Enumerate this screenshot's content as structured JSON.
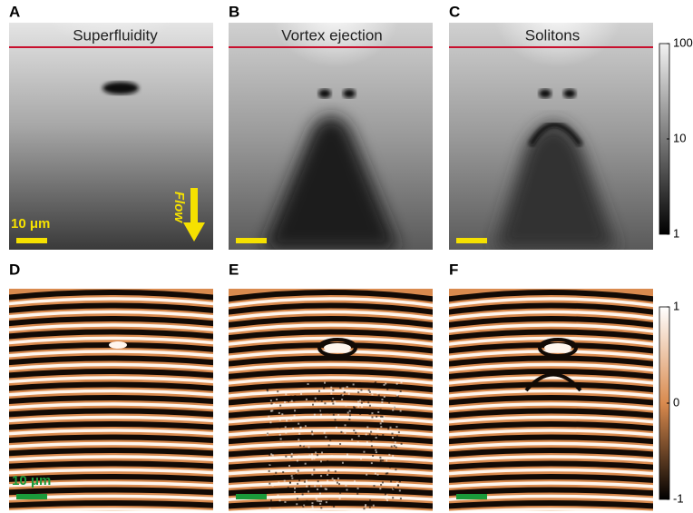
{
  "panels": [
    {
      "label": "A",
      "title": "Superfluidity",
      "scale_bar": "10 μm",
      "flow": "Flow"
    },
    {
      "label": "B",
      "title": "Vortex ejection"
    },
    {
      "label": "C",
      "title": "Solitons"
    },
    {
      "label": "D",
      "scale_bar": "10 μm"
    },
    {
      "label": "E"
    },
    {
      "label": "F"
    }
  ],
  "colorbars": [
    {
      "scale": "log",
      "lim": [
        1,
        100
      ],
      "ticks": [
        1,
        10,
        100
      ]
    },
    {
      "scale": "linear",
      "lim": [
        -1,
        1
      ],
      "ticks": [
        -1,
        0,
        1
      ]
    }
  ]
}
